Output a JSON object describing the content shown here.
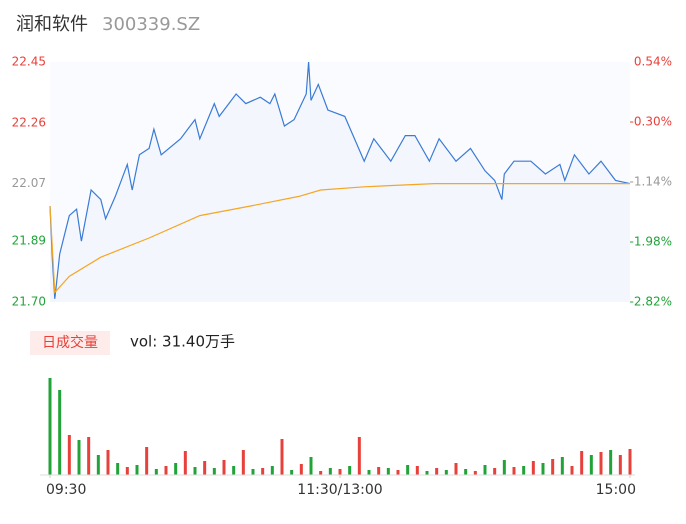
{
  "chart_data": {
    "type": "line",
    "title": "润和软件",
    "subtitle": "300339.SZ",
    "volume_tab": "日成交量",
    "volume_label": "vol: 31.40万手",
    "up_color": "#e8413b",
    "down_color": "#21a33a",
    "flat_color": "#999999",
    "xlim": [
      0,
      240
    ],
    "xticks": [
      {
        "value": 0,
        "label": "09:30"
      },
      {
        "value": 120,
        "label": "11:30/13:00"
      },
      {
        "value": 240,
        "label": "15:00"
      }
    ],
    "ylim": [
      21.7,
      22.45
    ],
    "yticks": [
      {
        "value": 22.45,
        "label": "22.45"
      },
      22.26,
      22.07,
      21.89,
      {
        "value": 21.7,
        "label": "21.70"
      }
    ],
    "y2lim": [
      -2.82,
      0.54
    ],
    "y2ticks": [
      {
        "value": 0.54,
        "label": "0.54%"
      },
      {
        "value": -0.3,
        "label": "-0.30%"
      },
      {
        "value": -1.14,
        "label": "-1.14%"
      },
      {
        "value": -1.98,
        "label": "-1.98%"
      },
      {
        "value": -2.82,
        "label": "-2.82%"
      }
    ],
    "series": [
      {
        "color": "#3a7bd5",
        "x": [
          0,
          1,
          2,
          4,
          8,
          11,
          13,
          17,
          21,
          23,
          27,
          32,
          34,
          37,
          41,
          43,
          46,
          54,
          60,
          62,
          68,
          70,
          77,
          81,
          87,
          91,
          93,
          97,
          101,
          106,
          107,
          108,
          111,
          115,
          122,
          126,
          130,
          134,
          141,
          147,
          151,
          157,
          161,
          168,
          174,
          180,
          184,
          187,
          188,
          192,
          199,
          205,
          211,
          213,
          217,
          223,
          228,
          234,
          240
        ],
        "values": [
          22.0,
          21.83,
          21.71,
          21.85,
          21.97,
          21.99,
          21.89,
          22.05,
          22.02,
          21.96,
          22.03,
          22.13,
          22.05,
          22.16,
          22.18,
          22.24,
          22.16,
          22.21,
          22.27,
          22.21,
          22.32,
          22.28,
          22.35,
          22.32,
          22.34,
          22.32,
          22.35,
          22.25,
          22.27,
          22.35,
          22.45,
          22.33,
          22.38,
          22.3,
          22.28,
          22.21,
          22.14,
          22.21,
          22.14,
          22.22,
          22.22,
          22.14,
          22.21,
          22.14,
          22.18,
          22.11,
          22.08,
          22.02,
          22.1,
          22.14,
          22.14,
          22.1,
          22.13,
          22.08,
          22.16,
          22.1,
          22.14,
          22.08,
          22.07
        ]
      },
      {
        "color": "#f5a623",
        "x": [
          0,
          2,
          8,
          21,
          41,
          62,
          83,
          103,
          112,
          130,
          159,
          240
        ],
        "values": [
          22.0,
          21.73,
          21.78,
          21.84,
          21.9,
          21.97,
          22.0,
          22.03,
          22.05,
          22.06,
          22.07,
          22.07
        ]
      }
    ],
    "volume": {
      "ylim": [
        0,
        10000
      ],
      "x": [
        0,
        4,
        8,
        12,
        16,
        20,
        24,
        28,
        32,
        36,
        40,
        44,
        48,
        52,
        56,
        60,
        64,
        68,
        72,
        76,
        80,
        84,
        88,
        92,
        96,
        100,
        104,
        108,
        112,
        116,
        120,
        124,
        128,
        132,
        136,
        140,
        144,
        148,
        152,
        156,
        160,
        164,
        168,
        172,
        176,
        180,
        184,
        188,
        192,
        196,
        200,
        204,
        208,
        212,
        216,
        220,
        224,
        228,
        232,
        236,
        240
      ],
      "values": [
        9700,
        8500,
        4000,
        3500,
        3800,
        2000,
        2500,
        1200,
        800,
        1000,
        2800,
        600,
        900,
        1200,
        2400,
        800,
        1400,
        700,
        1500,
        900,
        2500,
        600,
        700,
        900,
        3600,
        500,
        1100,
        1800,
        400,
        700,
        600,
        900,
        3800,
        500,
        800,
        700,
        500,
        1000,
        900,
        400,
        700,
        500,
        1200,
        600,
        400,
        1000,
        700,
        1500,
        800,
        900,
        1400,
        1200,
        1600,
        1800,
        900,
        2400,
        2000,
        2300,
        2500,
        2000,
        2600
      ],
      "colors": [
        "#21a33a",
        "#21a33a",
        "#e8413b",
        "#21a33a",
        "#e8413b",
        "#21a33a",
        "#e8413b",
        "#21a33a",
        "#e8413b",
        "#21a33a",
        "#e8413b",
        "#21a33a",
        "#e8413b",
        "#21a33a",
        "#e8413b",
        "#21a33a",
        "#e8413b",
        "#21a33a",
        "#e8413b",
        "#21a33a",
        "#e8413b",
        "#21a33a",
        "#e8413b",
        "#21a33a",
        "#e8413b",
        "#21a33a",
        "#e8413b",
        "#21a33a",
        "#e8413b",
        "#21a33a",
        "#e8413b",
        "#21a33a",
        "#e8413b",
        "#21a33a",
        "#e8413b",
        "#21a33a",
        "#e8413b",
        "#21a33a",
        "#e8413b",
        "#21a33a",
        "#e8413b",
        "#21a33a",
        "#e8413b",
        "#21a33a",
        "#e8413b",
        "#21a33a",
        "#e8413b",
        "#21a33a",
        "#e8413b",
        "#21a33a",
        "#e8413b",
        "#21a33a",
        "#e8413b",
        "#21a33a",
        "#e8413b",
        "#e8413b",
        "#21a33a",
        "#e8413b",
        "#21a33a",
        "#e8413b",
        "#e8413b"
      ]
    }
  }
}
